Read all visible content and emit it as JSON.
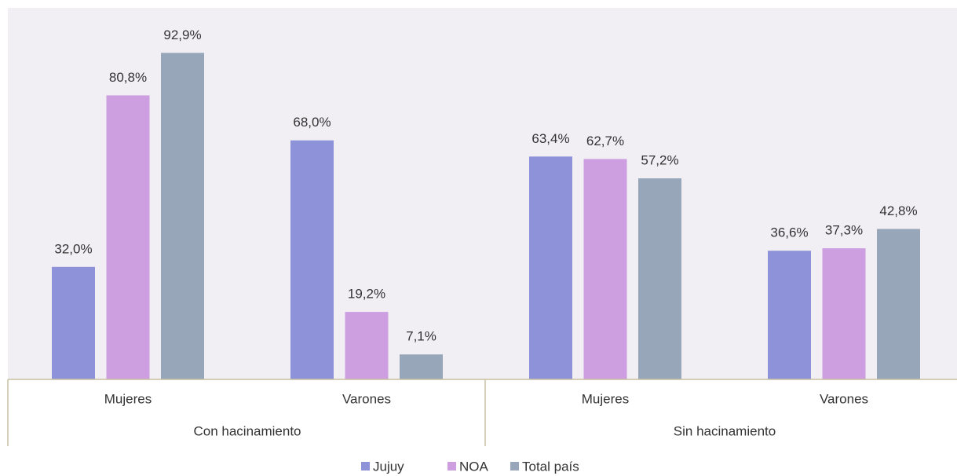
{
  "chart_data": {
    "type": "bar",
    "categories": [
      "Mujeres",
      "Varones",
      "Mujeres",
      "Varones"
    ],
    "groups": [
      "Con hacinamiento",
      "Sin hacinamiento"
    ],
    "series": [
      {
        "name": "Jujuy",
        "color": "#8e92d9",
        "values": [
          32.0,
          68.0,
          63.4,
          36.6
        ],
        "value_labels": [
          "32,0%",
          "68,0%",
          "63,4%",
          "36,6%"
        ]
      },
      {
        "name": "NOA",
        "color": "#cd9fe0",
        "values": [
          80.8,
          19.2,
          62.7,
          37.3
        ],
        "value_labels": [
          "80,8%",
          "19,2%",
          "62,7%",
          "37,3%"
        ]
      },
      {
        "name": "Total país",
        "color": "#97a7b9",
        "values": [
          92.9,
          7.1,
          57.2,
          42.8
        ],
        "value_labels": [
          "92,9%",
          "7,1%",
          "57,2%",
          "42,8%"
        ]
      }
    ],
    "ylim": [
      0,
      105.7
    ],
    "legend": "bottom"
  }
}
